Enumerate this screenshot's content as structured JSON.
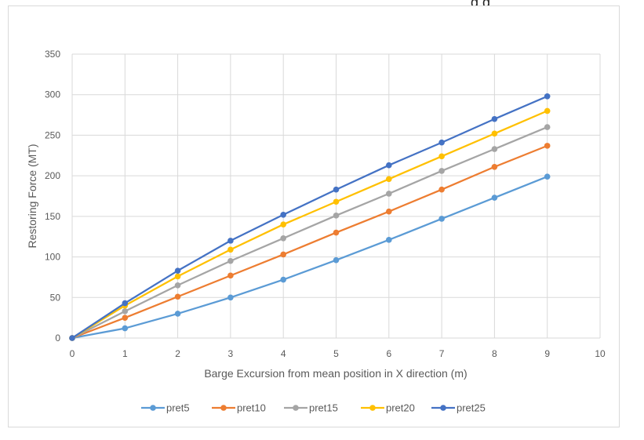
{
  "top_text": "g        g",
  "chart_data": {
    "type": "line",
    "title": "",
    "xlabel": "Barge Excursion from mean position in X direction (m)",
    "ylabel": "Restoring Force (MT)",
    "xlim": [
      0,
      10
    ],
    "ylim": [
      0,
      350
    ],
    "x_ticks": [
      0,
      1,
      2,
      3,
      4,
      5,
      6,
      7,
      8,
      9,
      10
    ],
    "y_ticks": [
      0,
      50,
      100,
      150,
      200,
      250,
      300,
      350
    ],
    "grid": true,
    "legend_position": "bottom",
    "x": [
      0,
      1,
      2,
      3,
      4,
      5,
      6,
      7,
      8,
      9
    ],
    "series": [
      {
        "name": "pret5",
        "color": "#5B9BD5",
        "values": [
          0,
          12,
          30,
          50,
          72,
          96,
          121,
          147,
          173,
          199
        ]
      },
      {
        "name": "pret10",
        "color": "#ED7D31",
        "values": [
          0,
          25,
          51,
          77,
          103,
          130,
          156,
          183,
          211,
          237
        ]
      },
      {
        "name": "pret15",
        "color": "#A5A5A5",
        "values": [
          0,
          33,
          65,
          95,
          123,
          151,
          178,
          206,
          233,
          260
        ]
      },
      {
        "name": "pret20",
        "color": "#FFC000",
        "values": [
          0,
          40,
          76,
          109,
          140,
          168,
          196,
          224,
          252,
          280
        ]
      },
      {
        "name": "pret25",
        "color": "#4472C4",
        "values": [
          0,
          43,
          83,
          120,
          152,
          183,
          213,
          241,
          270,
          298
        ]
      }
    ]
  }
}
